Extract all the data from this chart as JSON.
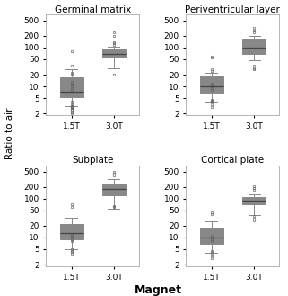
{
  "subplots": [
    {
      "title": "Germinal matrix",
      "group_15T": {
        "median": 7.5,
        "q1": 5.2,
        "q3": 17,
        "whislo": 3.2,
        "whishi": 28,
        "fliers": [
          35,
          2.5,
          3.0,
          2.8,
          80,
          2.2,
          2.5,
          3.5,
          4.0,
          2.0,
          20,
          22,
          3.2,
          3.0,
          8,
          9,
          10,
          11,
          12,
          13
        ]
      },
      "group_30T": {
        "median": 68,
        "q1": 55,
        "q3": 90,
        "whislo": 30,
        "whishi": 108,
        "fliers": [
          20,
          120,
          130,
          140,
          200,
          250
        ]
      }
    },
    {
      "title": "Periventricular layer",
      "group_15T": {
        "median": 10,
        "q1": 7,
        "q3": 18,
        "whislo": 4,
        "whishi": 22,
        "fliers": [
          55,
          60,
          25,
          28,
          4.5,
          4.0,
          3.5,
          3.0,
          4.2,
          8,
          9,
          10,
          11,
          12
        ]
      },
      "group_30T": {
        "median": 100,
        "q1": 70,
        "q3": 170,
        "whislo": 48,
        "whishi": 200,
        "fliers": [
          250,
          280,
          320,
          35,
          30,
          28
        ]
      }
    },
    {
      "title": "Subplate",
      "group_15T": {
        "median": 13,
        "q1": 9,
        "q3": 22,
        "whislo": 5,
        "whishi": 32,
        "fliers": [
          60,
          70,
          5.0,
          4.5,
          4.2,
          3.8,
          8,
          9,
          10,
          11,
          12
        ]
      },
      "group_30T": {
        "median": 175,
        "q1": 120,
        "q3": 240,
        "whislo": 55,
        "whishi": 320,
        "fliers": [
          400,
          450,
          500,
          60,
          65
        ]
      }
    },
    {
      "title": "Cortical plate",
      "group_15T": {
        "median": 10,
        "q1": 7,
        "q3": 18,
        "whislo": 4,
        "whishi": 26,
        "fliers": [
          40,
          45,
          4.5,
          4.0,
          3.5,
          3.0,
          8,
          9,
          10,
          11
        ]
      },
      "group_30T": {
        "median": 90,
        "q1": 70,
        "q3": 110,
        "whislo": 38,
        "whishi": 130,
        "fliers": [
          170,
          190,
          210,
          28,
          30,
          35
        ]
      }
    }
  ],
  "xtick_labels": [
    "1.5T",
    "3.0T"
  ],
  "xlabel": "Magnet",
  "ylabel": "Ratio to air",
  "yticks": [
    2,
    5,
    10,
    20,
    50,
    100,
    200,
    500
  ],
  "ylim": [
    1.8,
    700
  ],
  "box_facecolor": "#c8e4f0",
  "box_edgecolor": "#888888",
  "median_color": "#444444",
  "flier_edgecolor": "#666666",
  "background_color": "#ffffff",
  "spine_color": "#aaaaaa",
  "title_fontsize": 7.5,
  "tick_fontsize": 6.5,
  "xlabel_fontsize": 9,
  "ylabel_fontsize": 7.5
}
